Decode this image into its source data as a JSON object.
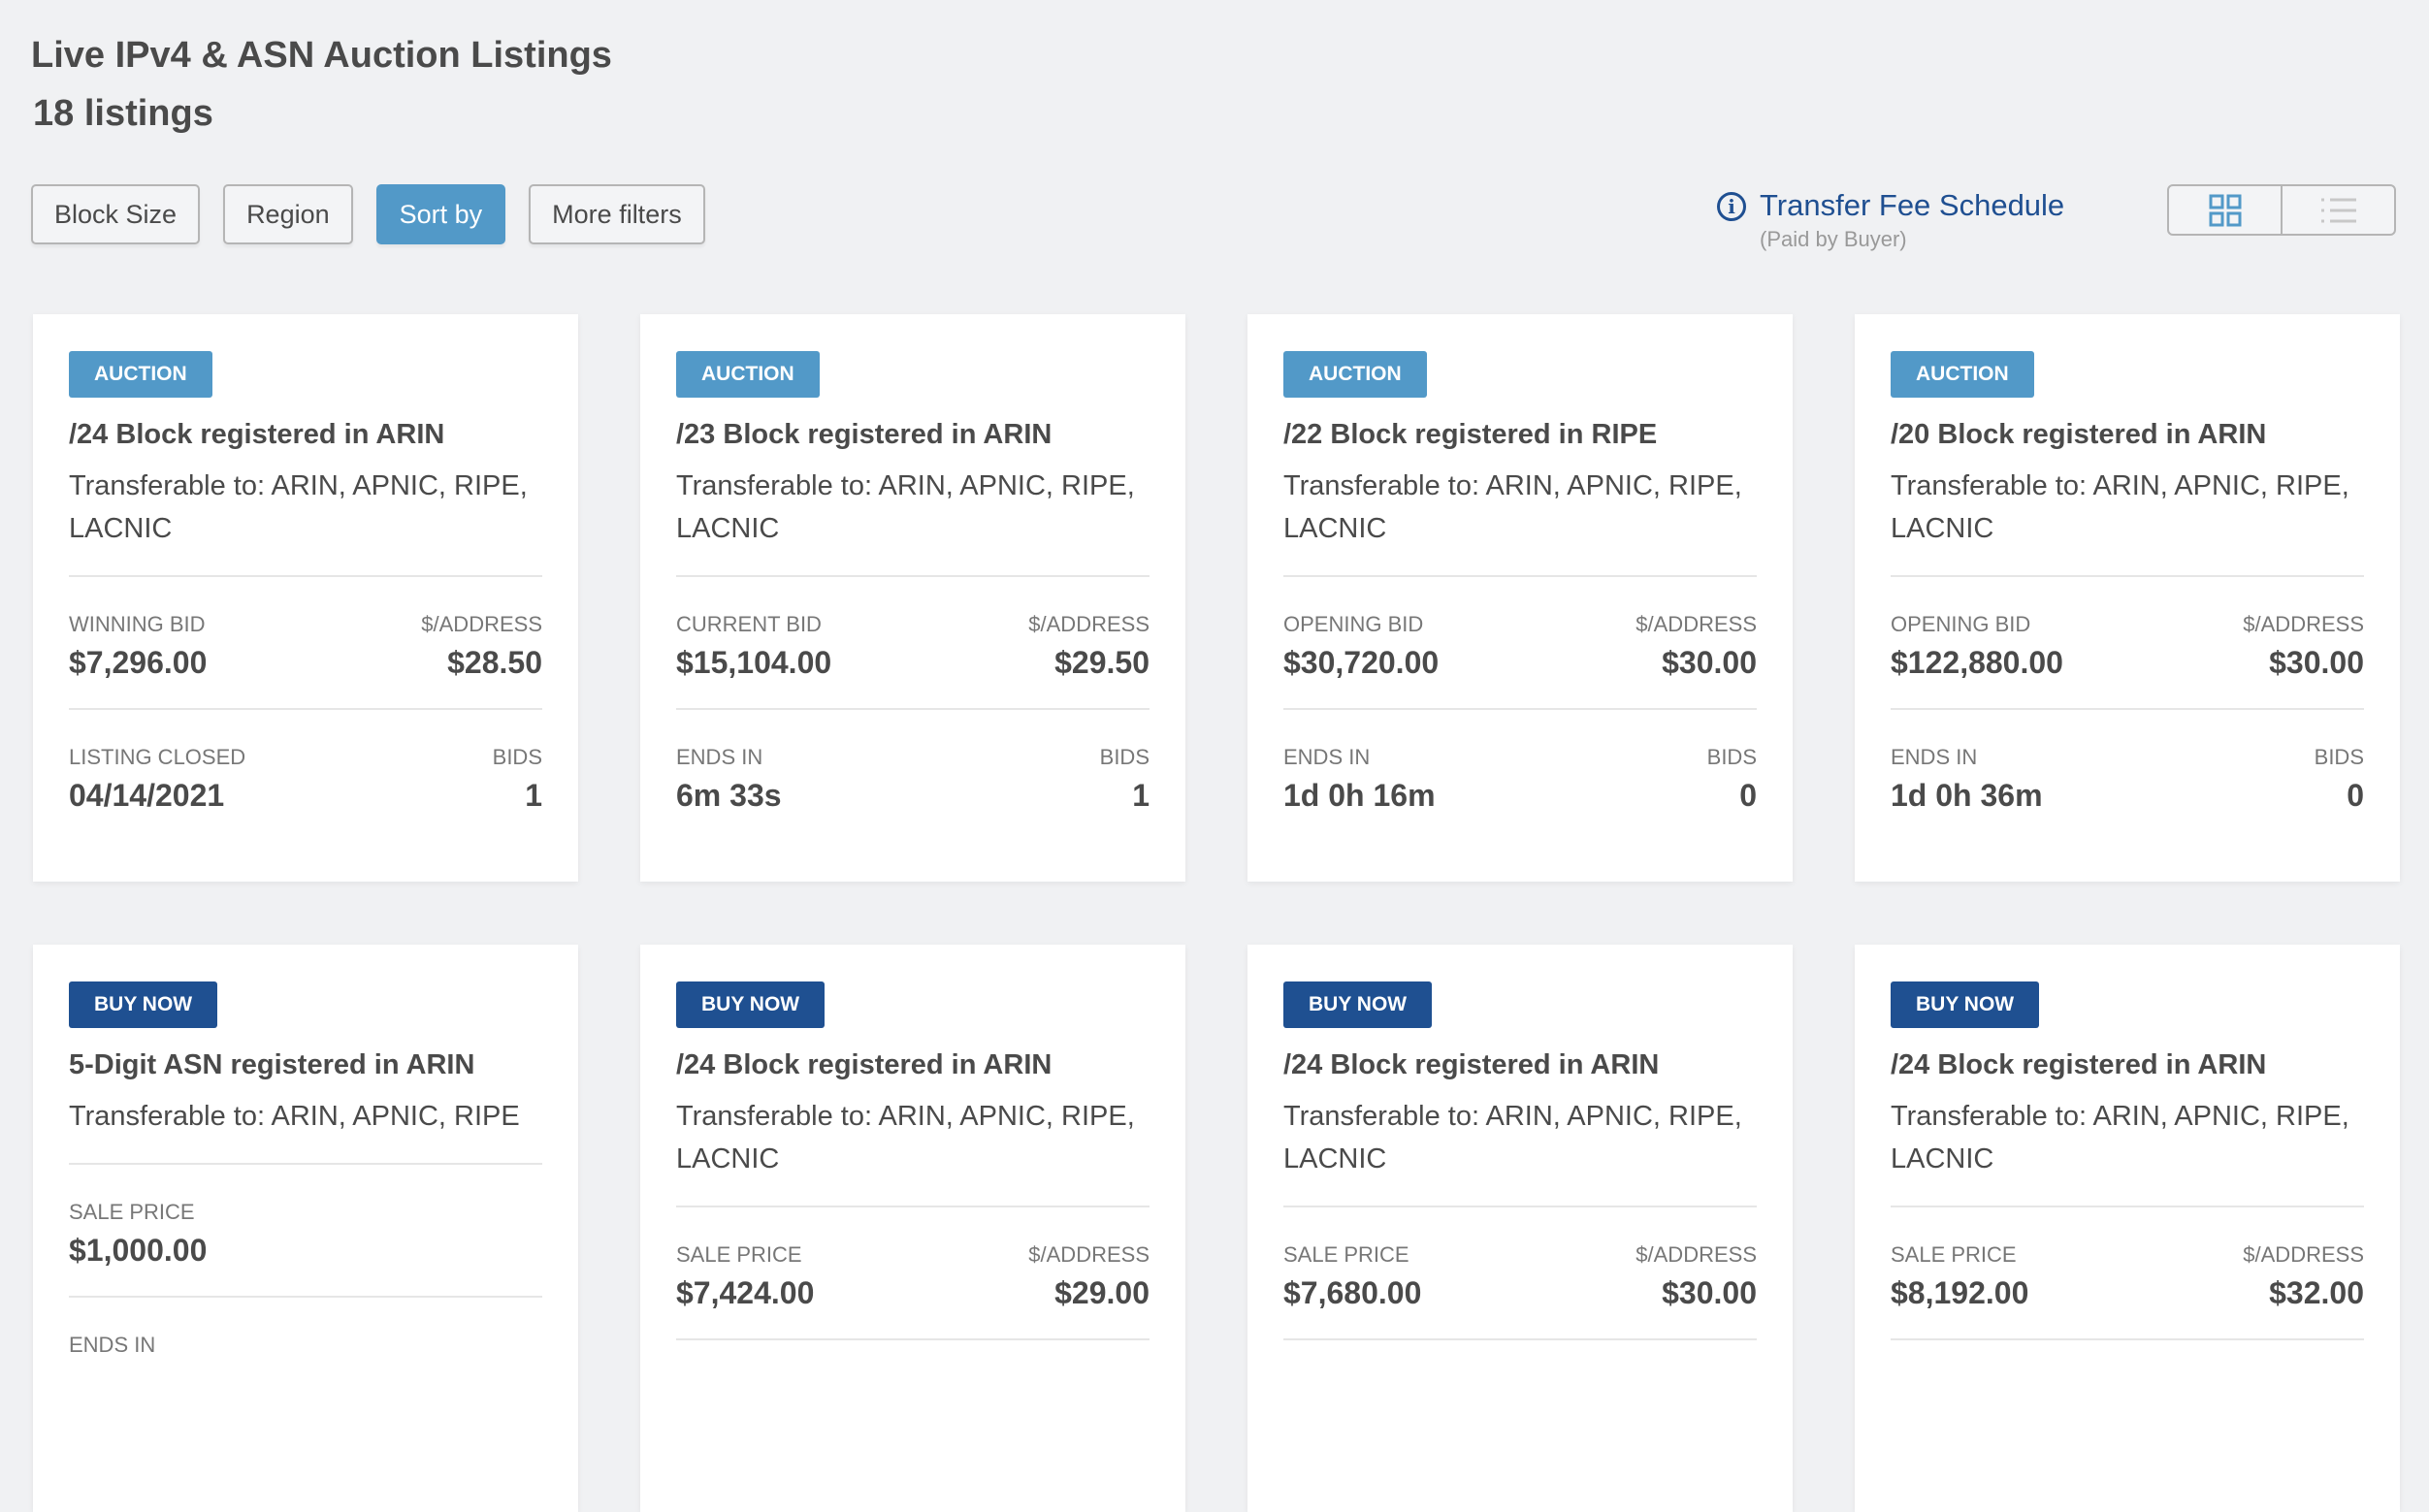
{
  "header": {
    "title": "Live IPv4 & ASN Auction Listings",
    "count": "18 listings"
  },
  "filters": [
    {
      "label": "Block Size",
      "active": false
    },
    {
      "label": "Region",
      "active": false
    },
    {
      "label": "Sort by",
      "active": true
    },
    {
      "label": "More filters",
      "active": false
    }
  ],
  "fee": {
    "icon": "info-icon",
    "link": "Transfer Fee Schedule",
    "sub": "(Paid by Buyer)"
  },
  "view_toggle": {
    "grid_icon": "grid-view-icon",
    "list_icon": "list-view-icon",
    "active": "grid"
  },
  "colors": {
    "auction": "#5299c8",
    "buy_now": "#1f5091",
    "link": "#1f4f91",
    "background": "#f0f1f3"
  },
  "cards": [
    {
      "badge": "AUCTION",
      "type": "auction",
      "title": "/24 Block registered in ARIN",
      "transfer": "Transferable to: ARIN, APNIC, RIPE, LACNIC",
      "l1": "WINNING BID",
      "v1": "$7,296.00",
      "r1": "$/ADDRESS",
      "rv1": "$28.50",
      "l2": "LISTING CLOSED",
      "v2": "04/14/2021",
      "r2": "BIDS",
      "rv2": "1"
    },
    {
      "badge": "AUCTION",
      "type": "auction",
      "title": "/23 Block registered in ARIN",
      "transfer": "Transferable to: ARIN, APNIC, RIPE, LACNIC",
      "l1": "CURRENT BID",
      "v1": "$15,104.00",
      "r1": "$/ADDRESS",
      "rv1": "$29.50",
      "l2": "ENDS IN",
      "v2": "6m 33s",
      "r2": "BIDS",
      "rv2": "1"
    },
    {
      "badge": "AUCTION",
      "type": "auction",
      "title": "/22 Block registered in RIPE",
      "transfer": "Transferable to: ARIN, APNIC, RIPE, LACNIC",
      "l1": "OPENING BID",
      "v1": "$30,720.00",
      "r1": "$/ADDRESS",
      "rv1": "$30.00",
      "l2": "ENDS IN",
      "v2": "1d 0h 16m",
      "r2": "BIDS",
      "rv2": "0"
    },
    {
      "badge": "AUCTION",
      "type": "auction",
      "title": "/20 Block registered in ARIN",
      "transfer": "Transferable to: ARIN, APNIC, RIPE, LACNIC",
      "l1": "OPENING BID",
      "v1": "$122,880.00",
      "r1": "$/ADDRESS",
      "rv1": "$30.00",
      "l2": "ENDS IN",
      "v2": "1d 0h 36m",
      "r2": "BIDS",
      "rv2": "0"
    },
    {
      "badge": "BUY NOW",
      "type": "buy",
      "title": "5-Digit ASN registered in ARIN",
      "transfer": "Transferable to: ARIN, APNIC, RIPE",
      "l1": "SALE PRICE",
      "v1": "$1,000.00",
      "l2": "ENDS IN"
    },
    {
      "badge": "BUY NOW",
      "type": "buy",
      "title": "/24 Block registered in ARIN",
      "transfer": "Transferable to: ARIN, APNIC, RIPE, LACNIC",
      "l1": "SALE PRICE",
      "v1": "$7,424.00",
      "r1": "$/ADDRESS",
      "rv1": "$29.00"
    },
    {
      "badge": "BUY NOW",
      "type": "buy",
      "title": "/24 Block registered in ARIN",
      "transfer": "Transferable to: ARIN, APNIC, RIPE, LACNIC",
      "l1": "SALE PRICE",
      "v1": "$7,680.00",
      "r1": "$/ADDRESS",
      "rv1": "$30.00"
    },
    {
      "badge": "BUY NOW",
      "type": "buy",
      "title": "/24 Block registered in ARIN",
      "transfer": "Transferable to: ARIN, APNIC, RIPE, LACNIC",
      "l1": "SALE PRICE",
      "v1": "$8,192.00",
      "r1": "$/ADDRESS",
      "rv1": "$32.00"
    }
  ]
}
